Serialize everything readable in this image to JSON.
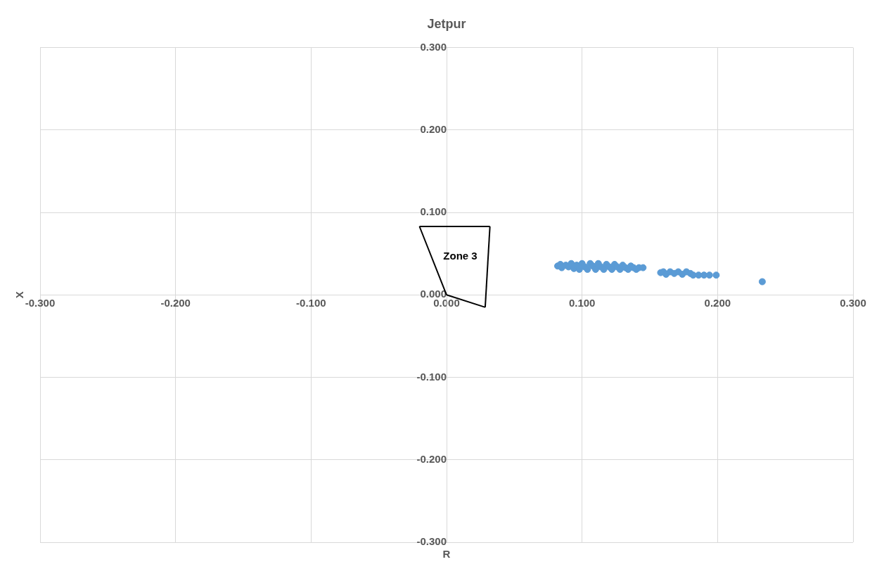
{
  "chart_data": {
    "type": "scatter",
    "title": "Jetpur",
    "xlabel": "R",
    "ylabel": "X",
    "annotations": [
      "Zone 3"
    ],
    "xlim": [
      -0.3,
      0.3
    ],
    "ylim": [
      -0.3,
      0.3
    ],
    "xticks": [
      {
        "value": -0.3,
        "label": "-0.300"
      },
      {
        "value": -0.2,
        "label": "-0.200"
      },
      {
        "value": -0.1,
        "label": "-0.100"
      },
      {
        "value": 0,
        "label": "0.000"
      },
      {
        "value": 0.1,
        "label": "0.100"
      },
      {
        "value": 0.2,
        "label": "0.200"
      },
      {
        "value": 0.3,
        "label": "0.300"
      }
    ],
    "yticks": [
      {
        "value": -0.3,
        "label": "-0.300"
      },
      {
        "value": -0.2,
        "label": "-0.200"
      },
      {
        "value": -0.1,
        "label": "-0.100"
      },
      {
        "value": 0,
        "label": "0.000"
      },
      {
        "value": 0.1,
        "label": "0.100"
      },
      {
        "value": 0.2,
        "label": "0.200"
      },
      {
        "value": 0.3,
        "label": "0.300"
      }
    ],
    "grid": true,
    "legend": false,
    "series": [
      {
        "type": "line",
        "color": "#000000",
        "marker": "none",
        "x": [
          -0.02,
          0
        ],
        "values": [
          0.083,
          0
        ]
      },
      {
        "type": "line",
        "color": "#000000",
        "marker": "none",
        "x": [
          -0.02,
          0.032
        ],
        "values": [
          0.083,
          0.083
        ]
      },
      {
        "type": "line",
        "color": "#000000",
        "marker": "none",
        "x": [
          0.0285,
          0.032
        ],
        "values": [
          -0.015,
          0.083
        ]
      },
      {
        "type": "line",
        "color": "#000000",
        "marker": "none",
        "x": [
          0,
          0.0285
        ],
        "values": [
          0,
          -0.015
        ]
      },
      {
        "type": "scatter",
        "color": "#5b9bd5",
        "marker": "circle",
        "x": [
          0.082,
          0.084,
          0.085,
          0.088,
          0.09,
          0.092,
          0.094,
          0.096,
          0.098,
          0.1,
          0.102,
          0.104,
          0.106,
          0.108,
          0.11,
          0.112,
          0.114,
          0.116,
          0.118,
          0.12,
          0.122,
          0.124,
          0.126,
          0.128,
          0.13,
          0.132,
          0.134,
          0.136,
          0.138,
          0.14,
          0.142,
          0.145,
          0.158,
          0.16,
          0.162,
          0.165,
          0.168,
          0.171,
          0.174,
          0.177,
          0.18,
          0.182,
          0.186,
          0.19,
          0.194,
          0.199,
          0.233
        ],
        "values": [
          0.035,
          0.037,
          0.033,
          0.036,
          0.034,
          0.038,
          0.032,
          0.036,
          0.031,
          0.038,
          0.034,
          0.031,
          0.038,
          0.035,
          0.031,
          0.038,
          0.034,
          0.031,
          0.037,
          0.034,
          0.031,
          0.037,
          0.034,
          0.031,
          0.036,
          0.033,
          0.031,
          0.035,
          0.033,
          0.031,
          0.033,
          0.033,
          0.027,
          0.028,
          0.025,
          0.028,
          0.026,
          0.028,
          0.025,
          0.028,
          0.026,
          0.024,
          0.024,
          0.024,
          0.024,
          0.024,
          0.016
        ]
      }
    ]
  }
}
